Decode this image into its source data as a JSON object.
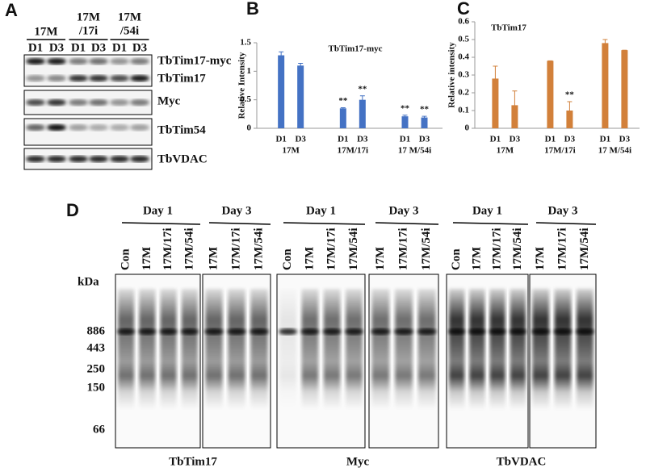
{
  "panel_a": {
    "label": "A",
    "column_groups": [
      [
        "17M"
      ],
      [
        "17M",
        "/17i"
      ],
      [
        "17M",
        "/54i"
      ]
    ],
    "lanes": [
      "D1",
      "D3",
      "D1",
      "D3",
      "D1",
      "D3"
    ],
    "rows": [
      "TbTim17-myc",
      "TbTim17",
      "Myc",
      "TbTim54",
      "TbVDAC"
    ]
  },
  "chart_data": [
    {
      "type": "bar",
      "panel": "B",
      "title": "TbTim17-myc",
      "y_label": "Relative Intensity",
      "categories": [
        "D1",
        "D3",
        "D1",
        "D3",
        "D1",
        "D3"
      ],
      "groups": [
        "17M",
        "17M/17i",
        "17 M/54i"
      ],
      "values": [
        1.28,
        1.1,
        0.35,
        0.5,
        0.21,
        0.19
      ],
      "errors": [
        0.06,
        0.04,
        0.01,
        0.07,
        0.02,
        0.02
      ],
      "significance": [
        null,
        null,
        "**",
        "**",
        "**",
        "**"
      ],
      "color": "#4472c4",
      "ylim": [
        0,
        1.5
      ],
      "yticks": [
        0,
        0.5,
        1,
        1.5
      ]
    },
    {
      "type": "bar",
      "panel": "C",
      "title": "TbTim17",
      "y_label": "Relative intensity",
      "categories": [
        "D1",
        "D3",
        "D1",
        "D3",
        "D1",
        "D3"
      ],
      "groups": [
        "17M",
        "17M/17i",
        "17 M/54i"
      ],
      "values": [
        0.28,
        0.13,
        0.38,
        0.1,
        0.48,
        0.44
      ],
      "errors": [
        0.07,
        0.08,
        0.0,
        0.05,
        0.02,
        0.0
      ],
      "significance": [
        null,
        null,
        null,
        "**",
        null,
        null
      ],
      "color": "#d2803a",
      "ylim": [
        0,
        0.6
      ],
      "yticks": [
        0,
        0.1,
        0.2,
        0.3,
        0.4,
        0.5,
        0.6
      ]
    }
  ],
  "panel_d": {
    "label": "D",
    "kda_label": "kDa",
    "markers": [
      886,
      443,
      250,
      150,
      66
    ],
    "blots": [
      {
        "name": "TbTim17",
        "groups": [
          {
            "day": "Day 1",
            "lanes": [
              "Con",
              "17M",
              "17M/17i",
              "17M/54i"
            ]
          },
          {
            "day": "Day 3",
            "lanes": [
              "17M",
              "17M/17i",
              "17M/54i"
            ]
          }
        ]
      },
      {
        "name": "Myc",
        "groups": [
          {
            "day": "Day 1",
            "lanes": [
              "Con",
              "17M",
              "17M/17i",
              "17M/54i"
            ]
          },
          {
            "day": "Day 3",
            "lanes": [
              "17M",
              "17M/17i",
              "17M/54i"
            ]
          }
        ]
      },
      {
        "name": "TbVDAC",
        "groups": [
          {
            "day": "Day 1",
            "lanes": [
              "Con",
              "17M",
              "17M/17i",
              "17M/54i"
            ]
          },
          {
            "day": "Day 3",
            "lanes": [
              "17M",
              "17M/17i",
              "17M/54i"
            ]
          }
        ]
      }
    ]
  }
}
